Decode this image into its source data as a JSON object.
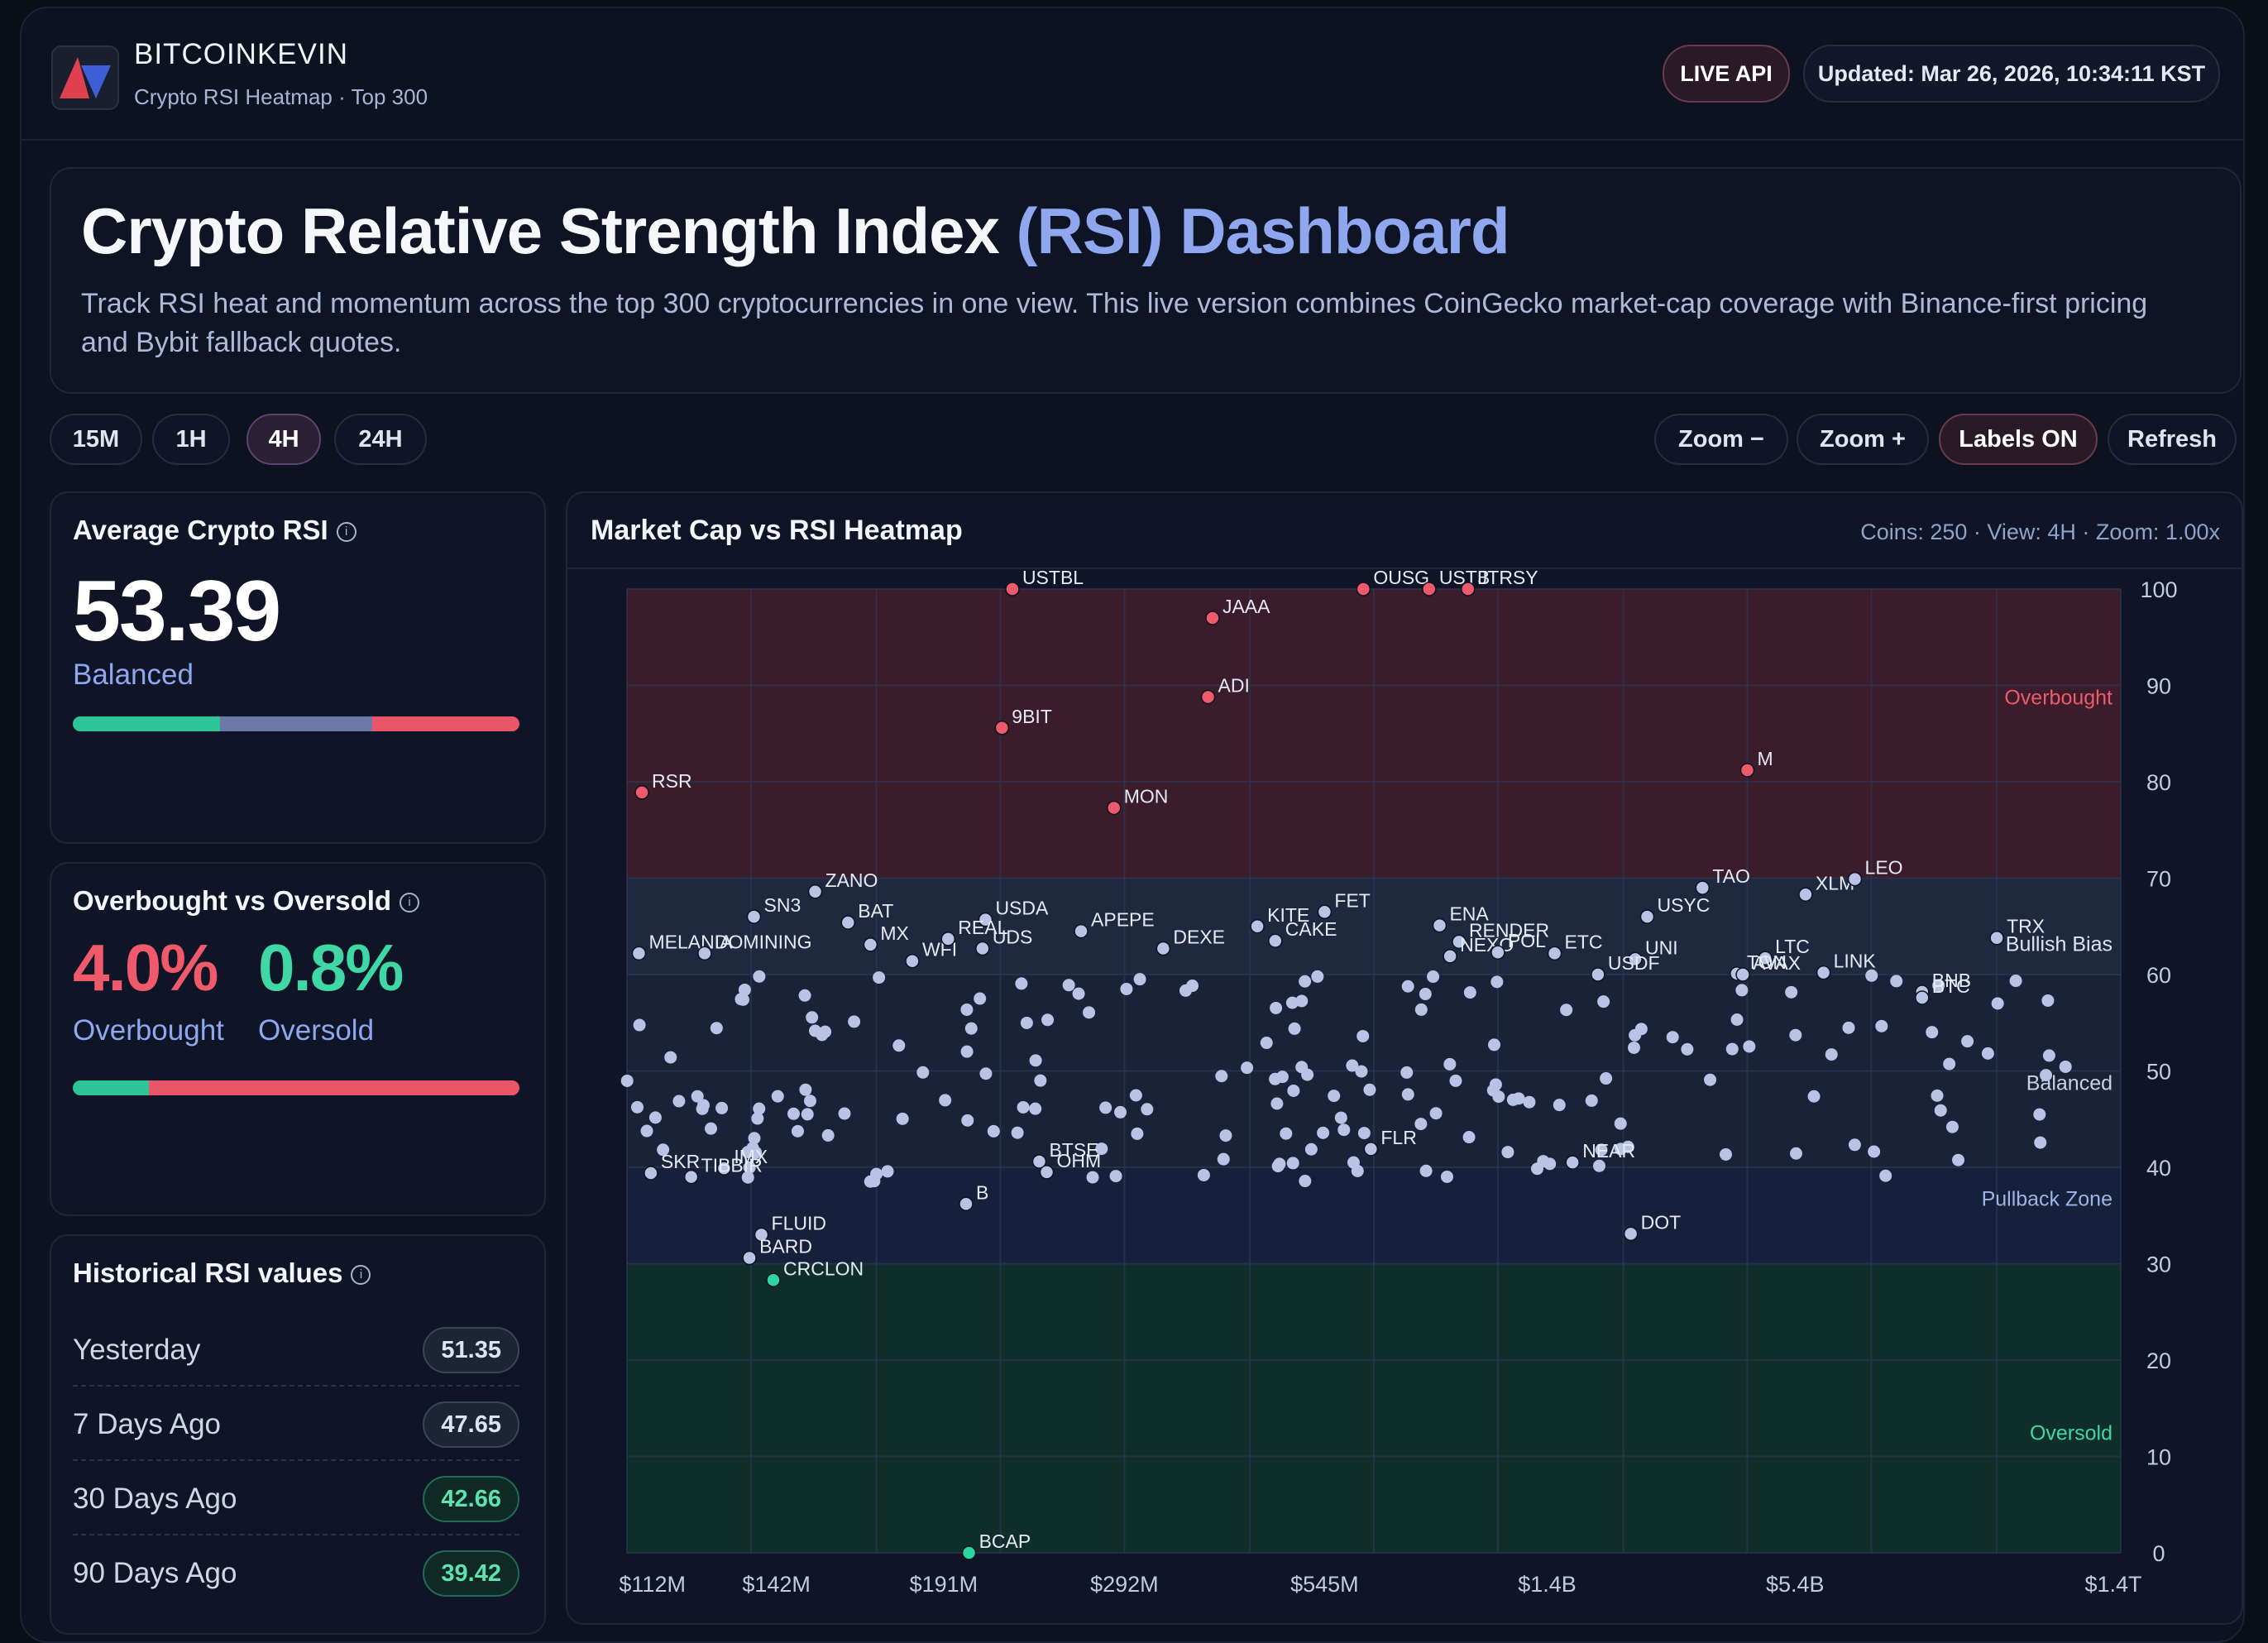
{
  "header": {
    "brand": "BITCOINKEVIN",
    "subtitle": "Crypto RSI Heatmap · Top 300",
    "live_label": "LIVE API",
    "updated": "Updated: Mar 26, 2026, 10:34:11 KST"
  },
  "hero": {
    "title_main": "Crypto Relative Strength Index ",
    "title_accent": "(RSI) Dashboard",
    "description": "Track RSI heat and momentum across the top 300 cryptocurrencies in one view. This live version combines CoinGecko market-cap coverage with Binance-first pricing and Bybit fallback quotes."
  },
  "timeframes": [
    {
      "label": "15M",
      "active": false
    },
    {
      "label": "1H",
      "active": false
    },
    {
      "label": "4H",
      "active": true
    },
    {
      "label": "24H",
      "active": false
    }
  ],
  "actions": {
    "zoom_out": "Zoom −",
    "zoom_in": "Zoom +",
    "labels": "Labels ON",
    "refresh": "Refresh"
  },
  "average": {
    "title": "Average Crypto RSI",
    "value": "53.39",
    "status": "Balanced"
  },
  "ob_os": {
    "title": "Overbought vs Oversold",
    "overbought_value": "4.0%",
    "oversold_value": "0.8%",
    "overbought_label": "Overbought",
    "oversold_label": "Oversold"
  },
  "history": {
    "title": "Historical RSI values",
    "rows": [
      {
        "label": "Yesterday",
        "value": "51.35",
        "tone": "n"
      },
      {
        "label": "7 Days Ago",
        "value": "47.65",
        "tone": "n"
      },
      {
        "label": "30 Days Ago",
        "value": "42.66",
        "tone": "g"
      },
      {
        "label": "90 Days Ago",
        "value": "39.42",
        "tone": "g"
      }
    ]
  },
  "colors": {
    "overbought": "#ef5a6a",
    "oversold": "#2dd4a0",
    "neutral_point": "#b8c3e6",
    "accent": "#8fa7ee"
  },
  "chart": {
    "title": "Market Cap vs RSI Heatmap",
    "meta": "Coins: 250 · View: 4H · Zoom: 1.00x"
  },
  "chart_data": {
    "type": "scatter",
    "title": "Market Cap vs RSI Heatmap",
    "x_scale": "log",
    "x_tick_labels": [
      "$112M",
      "$142M",
      "$191M",
      "$292M",
      "$545M",
      "$1.4B",
      "$5.4B",
      "$1.4T"
    ],
    "y_ticks": [
      0,
      10,
      20,
      30,
      40,
      50,
      60,
      70,
      80,
      90,
      100
    ],
    "ylim": [
      0,
      100
    ],
    "zones": [
      {
        "name": "Overbought",
        "from": 70,
        "to": 100
      },
      {
        "name": "Bullish Bias",
        "from": 60,
        "to": 70
      },
      {
        "name": "Balanced",
        "from": 40,
        "to": 60
      },
      {
        "name": "Pullback Zone",
        "from": 30,
        "to": 40
      },
      {
        "name": "Oversold",
        "from": 0,
        "to": 30
      }
    ],
    "labeled_points": [
      {
        "s": "RSR",
        "x": 0.01,
        "y": 78.9
      },
      {
        "s": "USTBL",
        "x": 0.258,
        "y": 100
      },
      {
        "s": "JAAA",
        "x": 0.392,
        "y": 97
      },
      {
        "s": "ADI",
        "x": 0.389,
        "y": 88.8
      },
      {
        "s": "9BIT",
        "x": 0.251,
        "y": 85.6
      },
      {
        "s": "MON",
        "x": 0.326,
        "y": 77.3
      },
      {
        "s": "OUSG",
        "x": 0.493,
        "y": 100
      },
      {
        "s": "USTB",
        "x": 0.537,
        "y": 100
      },
      {
        "s": "JTRSY",
        "x": 0.563,
        "y": 100
      },
      {
        "s": "M",
        "x": 0.75,
        "y": 81.2
      },
      {
        "s": "ZANO",
        "x": 0.126,
        "y": 68.6
      },
      {
        "s": "SN3",
        "x": 0.085,
        "y": 66
      },
      {
        "s": "BAT",
        "x": 0.148,
        "y": 65.4
      },
      {
        "s": "MELANIA",
        "x": 0.008,
        "y": 62.2
      },
      {
        "s": "DOMINING",
        "x": 0.052,
        "y": 62.2
      },
      {
        "s": "MX",
        "x": 0.163,
        "y": 63.1
      },
      {
        "s": "WFI",
        "x": 0.191,
        "y": 61.4
      },
      {
        "s": "USDA",
        "x": 0.24,
        "y": 65.7
      },
      {
        "s": "REAL",
        "x": 0.215,
        "y": 63.7
      },
      {
        "s": "UDS",
        "x": 0.238,
        "y": 62.7
      },
      {
        "s": "APEPE",
        "x": 0.304,
        "y": 64.5
      },
      {
        "s": "DEXE",
        "x": 0.359,
        "y": 62.7
      },
      {
        "s": "KITE",
        "x": 0.422,
        "y": 65
      },
      {
        "s": "CAKE",
        "x": 0.434,
        "y": 63.5
      },
      {
        "s": "FET",
        "x": 0.467,
        "y": 66.5
      },
      {
        "s": "ENA",
        "x": 0.544,
        "y": 65.1
      },
      {
        "s": "RENDER",
        "x": 0.557,
        "y": 63.4
      },
      {
        "s": "NEXO",
        "x": 0.551,
        "y": 61.9
      },
      {
        "s": "POL",
        "x": 0.583,
        "y": 62.3
      },
      {
        "s": "ETC",
        "x": 0.621,
        "y": 62.2
      },
      {
        "s": "USYC",
        "x": 0.683,
        "y": 66
      },
      {
        "s": "TAO",
        "x": 0.72,
        "y": 69
      },
      {
        "s": "UNI",
        "x": 0.675,
        "y": 61.6
      },
      {
        "s": "USDF",
        "x": 0.65,
        "y": 60
      },
      {
        "s": "XLM",
        "x": 0.789,
        "y": 68.3
      },
      {
        "s": "LEO",
        "x": 0.822,
        "y": 69.9
      },
      {
        "s": "LTC",
        "x": 0.762,
        "y": 61.7
      },
      {
        "s": "TON",
        "x": 0.743,
        "y": 60.1
      },
      {
        "s": "AVAX",
        "x": 0.747,
        "y": 60
      },
      {
        "s": "LINK",
        "x": 0.801,
        "y": 60.2
      },
      {
        "s": "TRX",
        "x": 0.917,
        "y": 63.8
      },
      {
        "s": "BNB",
        "x": 0.867,
        "y": 58.2
      },
      {
        "s": "BTC",
        "x": 0.867,
        "y": 57.6
      },
      {
        "s": "SKR",
        "x": 0.016,
        "y": 39.4
      },
      {
        "s": "IMX",
        "x": 0.065,
        "y": 39.9
      },
      {
        "s": "TIBBIR",
        "x": 0.043,
        "y": 39
      },
      {
        "s": "B",
        "x": 0.227,
        "y": 36.2
      },
      {
        "s": "BTSE",
        "x": 0.276,
        "y": 40.6
      },
      {
        "s": "OHM",
        "x": 0.281,
        "y": 39.5
      },
      {
        "s": "FLR",
        "x": 0.498,
        "y": 41.9
      },
      {
        "s": "NEAR",
        "x": 0.633,
        "y": 40.5
      },
      {
        "s": "DOT",
        "x": 0.672,
        "y": 33.1
      },
      {
        "s": "FLUID",
        "x": 0.09,
        "y": 33
      },
      {
        "s": "BARD",
        "x": 0.082,
        "y": 30.6
      },
      {
        "s": "CRCLON",
        "x": 0.098,
        "y": 28.3
      },
      {
        "s": "BCAP",
        "x": 0.229,
        "y": 0
      }
    ],
    "unlabeled_points_note": "approx. 200 additional coins between RSI 38 and 60"
  }
}
